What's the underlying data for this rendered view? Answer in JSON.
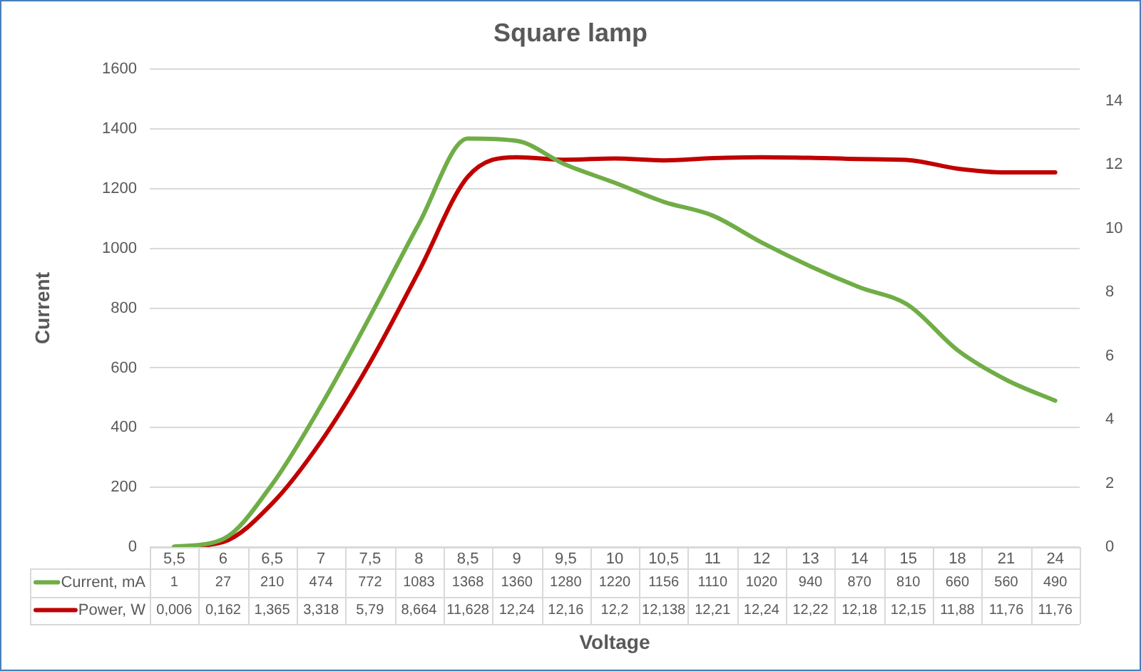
{
  "chart_data": {
    "type": "line",
    "title": "Square lamp",
    "xlabel": "Voltage",
    "ylabel": "Current",
    "categories": [
      "5,5",
      "6",
      "6,5",
      "7",
      "7,5",
      "8",
      "8,5",
      "9",
      "9,5",
      "10",
      "10,5",
      "11",
      "12",
      "13",
      "14",
      "15",
      "18",
      "21",
      "24"
    ],
    "series": [
      {
        "name": "Current, mA",
        "color": "#70ad47",
        "values": [
          1,
          27,
          210,
          474,
          772,
          1083,
          1368,
          1360,
          1280,
          1220,
          1156,
          1110,
          1020,
          940,
          870,
          810,
          660,
          560,
          490
        ],
        "value_labels": [
          "1",
          "27",
          "210",
          "474",
          "772",
          "1083",
          "1368",
          "1360",
          "1280",
          "1220",
          "1156",
          "1110",
          "1020",
          "940",
          "870",
          "810",
          "660",
          "560",
          "490"
        ]
      },
      {
        "name": "Power, W",
        "color": "#c00000",
        "axis": "y2",
        "values": [
          0.006,
          0.162,
          1.365,
          3.318,
          5.79,
          8.664,
          11.628,
          12.24,
          12.16,
          12.2,
          12.138,
          12.21,
          12.24,
          12.22,
          12.18,
          12.15,
          11.88,
          11.76,
          11.76
        ],
        "value_labels": [
          "0,006",
          "0,162",
          "1,365",
          "3,318",
          "5,79",
          "8,664",
          "11,628",
          "12,24",
          "12,16",
          "12,2",
          "12,138",
          "12,21",
          "12,24",
          "12,22",
          "12,18",
          "12,15",
          "11,88",
          "11,76",
          "11,76"
        ]
      }
    ],
    "ylim": [
      0,
      1600
    ],
    "yticks": [
      0,
      200,
      400,
      600,
      800,
      1000,
      1200,
      1400,
      1600
    ],
    "y2lim": [
      0,
      15
    ],
    "y2ticks": [
      0,
      2,
      4,
      6,
      8,
      10,
      12,
      14
    ],
    "grid": "y",
    "marker": "none",
    "line_style": "solid",
    "legend": "bottom left"
  }
}
